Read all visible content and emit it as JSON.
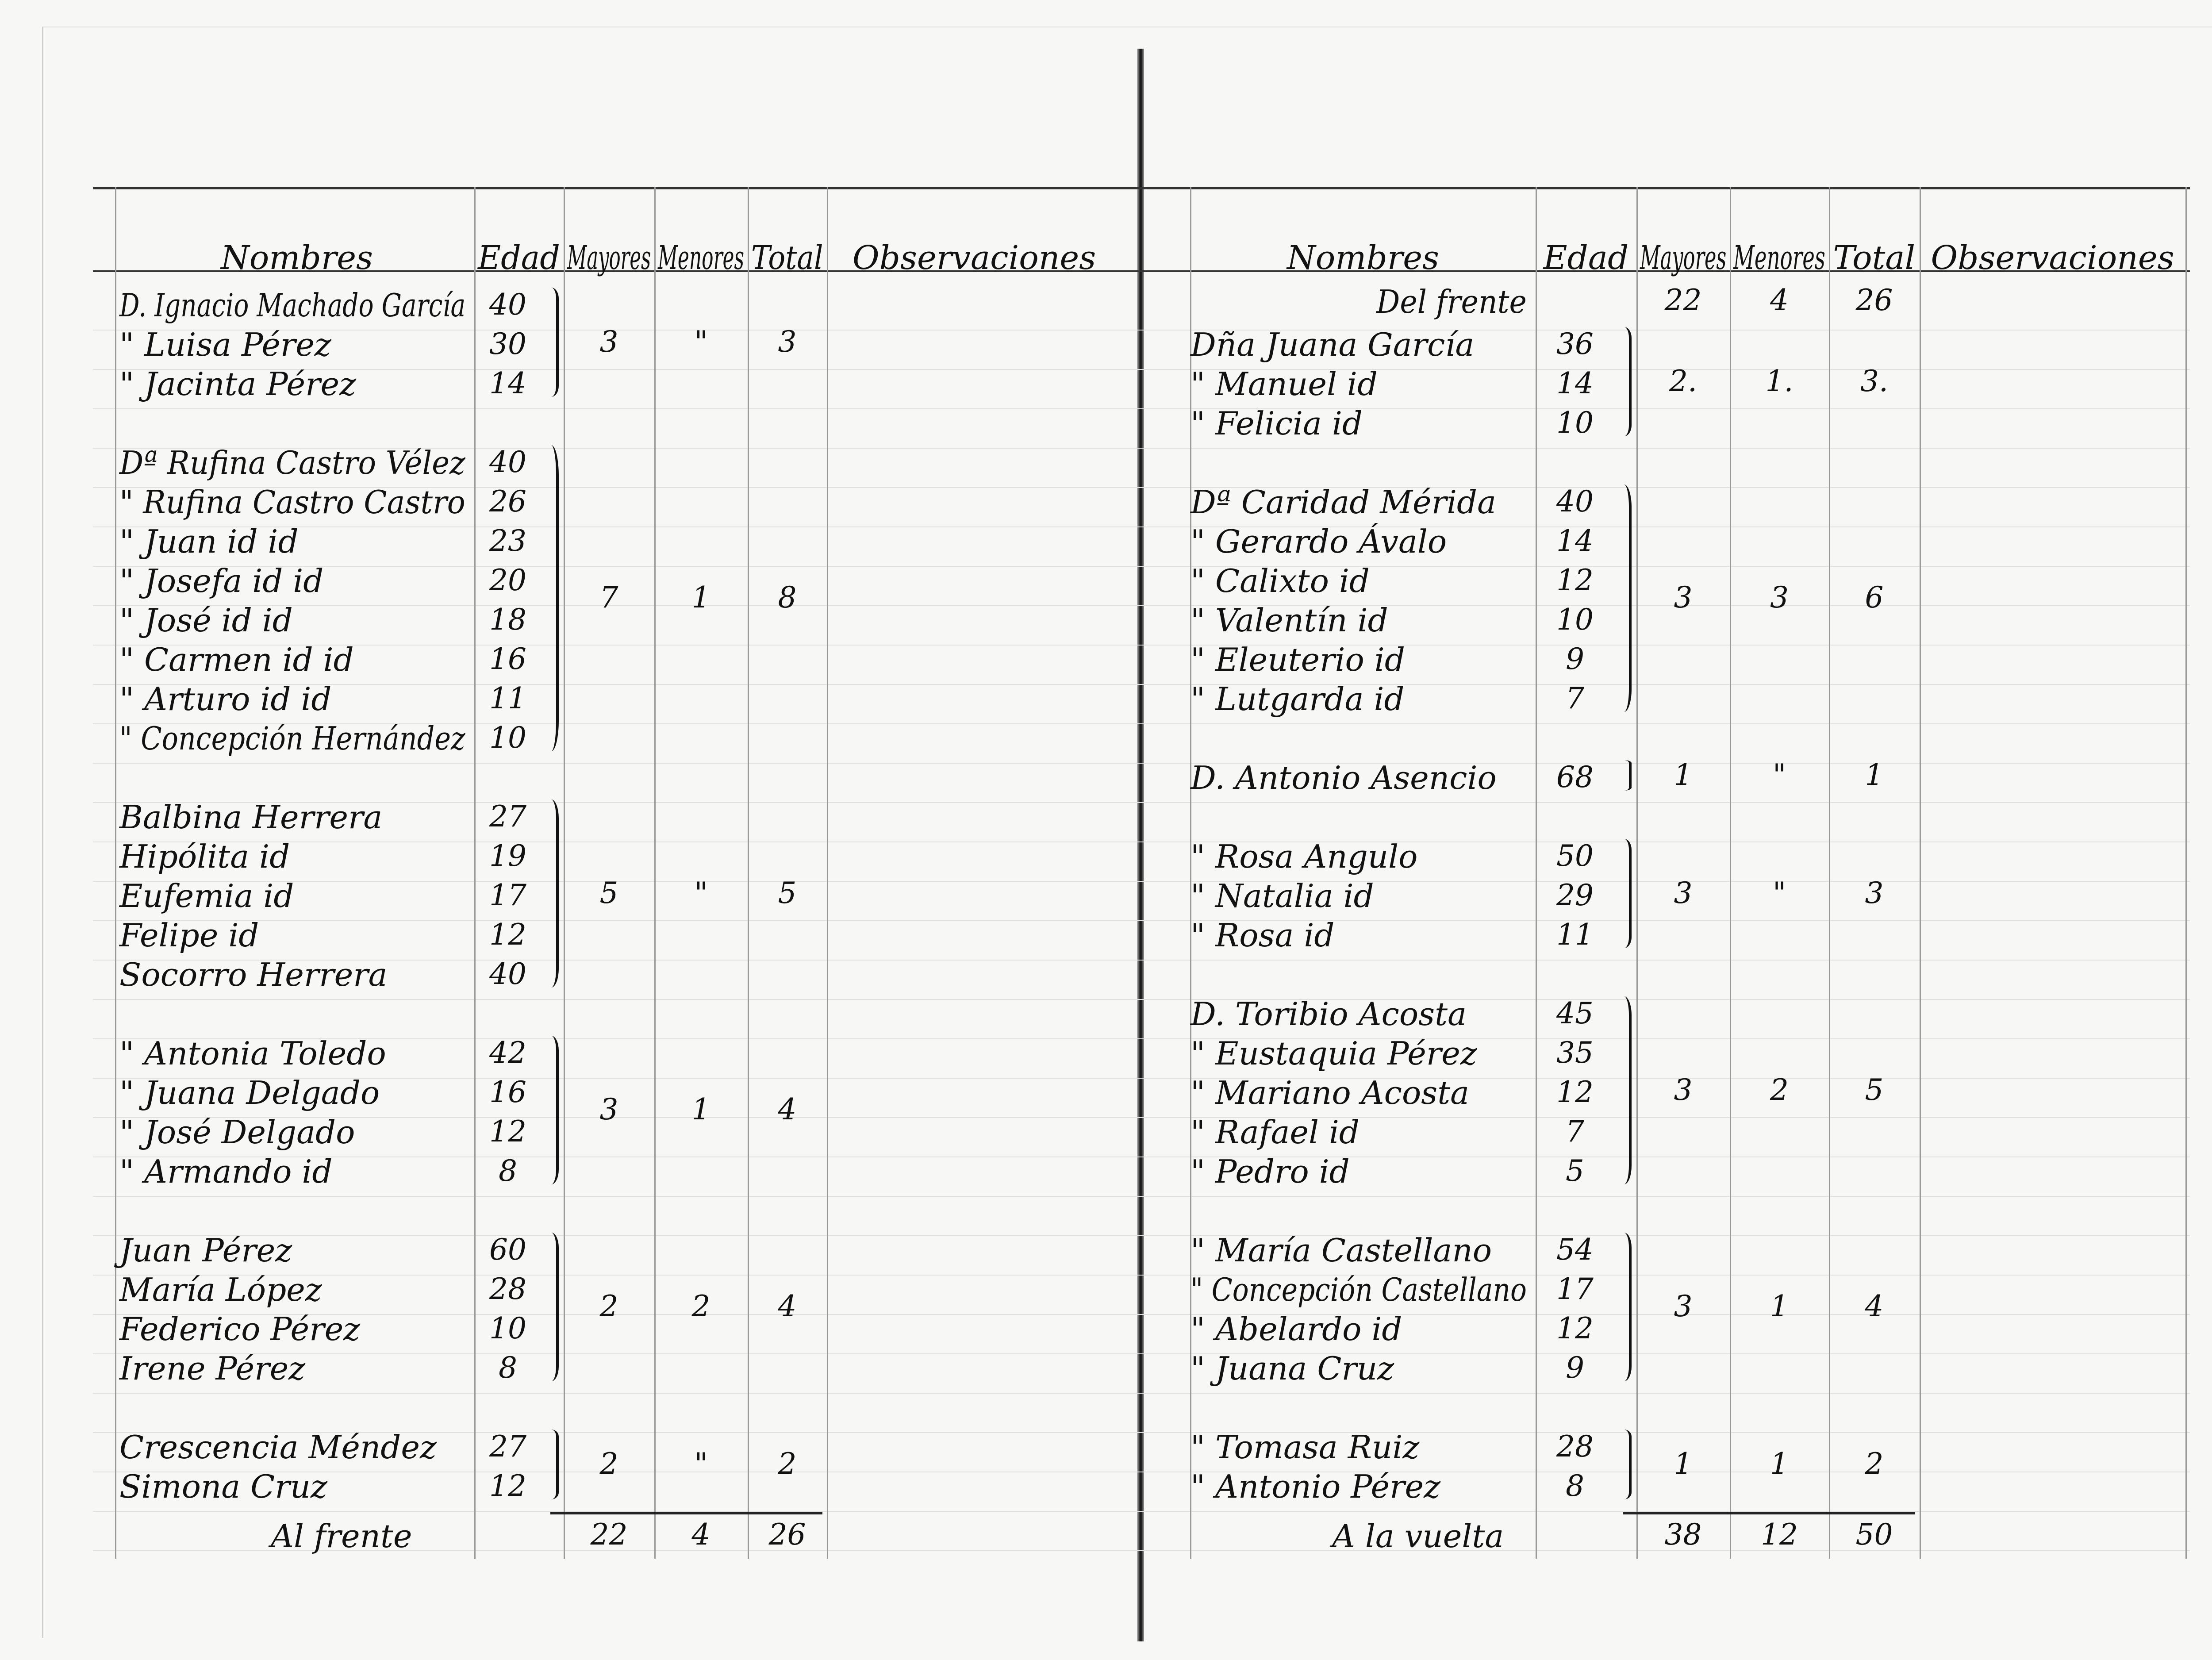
{
  "left": {
    "headers": {
      "nombres": "Nombres",
      "edad": "Edad",
      "mayores": "Mayores",
      "menores": "Menores",
      "total": "Total",
      "observaciones": "Observaciones"
    },
    "groups": [
      {
        "rows": [
          {
            "name": "D. Ignacio Machado García",
            "age": "40"
          },
          {
            "name": "\" Luisa Pérez",
            "age": "30"
          },
          {
            "name": "\" Jacinta Pérez",
            "age": "14"
          }
        ],
        "mayores": "3",
        "menores": "\"",
        "total": "3"
      },
      {
        "rows": [
          {
            "name": "Dª Rufina Castro Vélez",
            "age": "40"
          },
          {
            "name": "\" Rufina Castro Castro",
            "age": "26"
          },
          {
            "name": "\" Juan id id",
            "age": "23"
          },
          {
            "name": "\" Josefa id id",
            "age": "20"
          },
          {
            "name": "\" José id id",
            "age": "18"
          },
          {
            "name": "\" Carmen id id",
            "age": "16"
          },
          {
            "name": "\" Arturo id id",
            "age": "11"
          },
          {
            "name": "\" Concepción Hernández",
            "age": "10"
          }
        ],
        "mayores": "7",
        "menores": "1",
        "total": "8"
      },
      {
        "rows": [
          {
            "name": "Balbina Herrera",
            "age": "27"
          },
          {
            "name": "Hipólita id",
            "age": "19"
          },
          {
            "name": "Eufemia id",
            "age": "17"
          },
          {
            "name": "Felipe id",
            "age": "12"
          },
          {
            "name": "Socorro Herrera",
            "age": "40"
          }
        ],
        "mayores": "5",
        "menores": "\"",
        "total": "5"
      },
      {
        "rows": [
          {
            "name": "\" Antonia Toledo",
            "age": "42"
          },
          {
            "name": "\" Juana Delgado",
            "age": "16"
          },
          {
            "name": "\" José Delgado",
            "age": "12"
          },
          {
            "name": "\" Armando id",
            "age": "8"
          }
        ],
        "mayores": "3",
        "menores": "1",
        "total": "4"
      },
      {
        "rows": [
          {
            "name": "Juan Pérez",
            "age": "60"
          },
          {
            "name": "María López",
            "age": "28"
          },
          {
            "name": "Federico Pérez",
            "age": "10"
          },
          {
            "name": "Irene Pérez",
            "age": "8"
          }
        ],
        "mayores": "2",
        "menores": "2",
        "total": "4"
      },
      {
        "rows": [
          {
            "name": "Crescencia Méndez",
            "age": "27"
          },
          {
            "name": "Simona Cruz",
            "age": "12"
          }
        ],
        "mayores": "2",
        "menores": "\"",
        "total": "2"
      }
    ],
    "footer": {
      "label": "Al frente",
      "mayores": "22",
      "menores": "4",
      "total": "26"
    }
  },
  "right": {
    "headers": {
      "nombres": "Nombres",
      "edad": "Edad",
      "mayores": "Mayores",
      "menores": "Menores",
      "total": "Total",
      "observaciones": "Observaciones"
    },
    "carried": {
      "label": "Del frente",
      "mayores": "22",
      "menores": "4",
      "total": "26"
    },
    "groups": [
      {
        "rows": [
          {
            "name": "Dña Juana García",
            "age": "36"
          },
          {
            "name": "\" Manuel id",
            "age": "14"
          },
          {
            "name": "\" Felicia id",
            "age": "10"
          }
        ],
        "mayores": "2.",
        "menores": "1.",
        "total": "3."
      },
      {
        "rows": [
          {
            "name": "Dª Caridad Mérida",
            "age": "40"
          },
          {
            "name": "\" Gerardo Ávalo",
            "age": "14"
          },
          {
            "name": "\" Calixto id",
            "age": "12"
          },
          {
            "name": "\" Valentín id",
            "age": "10"
          },
          {
            "name": "\" Eleuterio id",
            "age": "9"
          },
          {
            "name": "\" Lutgarda id",
            "age": "7"
          }
        ],
        "mayores": "3",
        "menores": "3",
        "total": "6"
      },
      {
        "rows": [
          {
            "name": "D. Antonio Asencio",
            "age": "68"
          }
        ],
        "mayores": "1",
        "menores": "\"",
        "total": "1"
      },
      {
        "rows": [
          {
            "name": "\" Rosa Angulo",
            "age": "50"
          },
          {
            "name": "\" Natalia id",
            "age": "29"
          },
          {
            "name": "\" Rosa id",
            "age": "11"
          }
        ],
        "mayores": "3",
        "menores": "\"",
        "total": "3"
      },
      {
        "rows": [
          {
            "name": "D. Toribio Acosta",
            "age": "45"
          },
          {
            "name": "\" Eustaquia Pérez",
            "age": "35"
          },
          {
            "name": "\" Mariano Acosta",
            "age": "12"
          },
          {
            "name": "\" Rafael id",
            "age": "7"
          },
          {
            "name": "\" Pedro id",
            "age": "5"
          }
        ],
        "mayores": "3",
        "menores": "2",
        "total": "5"
      },
      {
        "rows": [
          {
            "name": "\" María Castellano",
            "age": "54"
          },
          {
            "name": "\" Concepción Castellano",
            "age": "17"
          },
          {
            "name": "\" Abelardo id",
            "age": "12"
          },
          {
            "name": "\" Juana Cruz",
            "age": "9"
          }
        ],
        "mayores": "3",
        "menores": "1",
        "total": "4"
      },
      {
        "rows": [
          {
            "name": "\" Tomasa Ruiz",
            "age": "28"
          },
          {
            "name": "\" Antonio Pérez",
            "age": "8"
          }
        ],
        "mayores": "1",
        "menores": "1",
        "total": "2"
      }
    ],
    "footer": {
      "label": "A la vuelta",
      "mayores": "38",
      "menores": "12",
      "total": "50"
    }
  }
}
